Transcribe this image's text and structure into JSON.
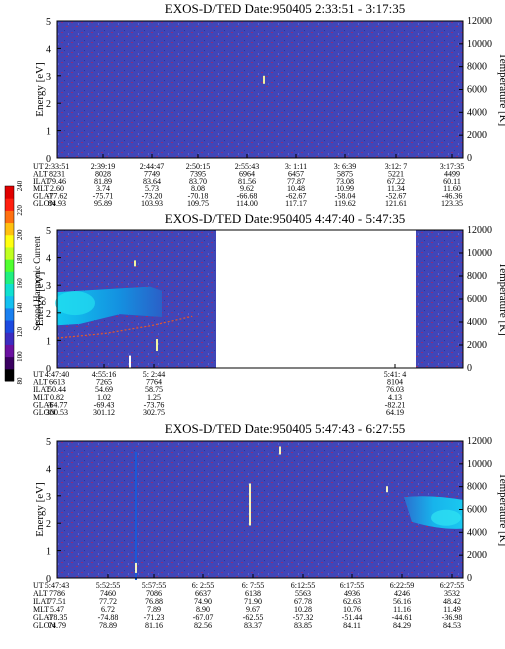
{
  "panels": [
    {
      "title": "EXOS-D/TED   Date:950405   2:33:51 - 3:17:35",
      "yticks": [
        "0",
        "1",
        "2",
        "3",
        "4",
        "5"
      ],
      "rticks": [
        "0",
        "2000",
        "4000",
        "6000",
        "8000",
        "10000",
        "12000"
      ],
      "ylabel": "Energy [eV]",
      "rlabel": "Temperature [K]",
      "row_labels": [
        "UT",
        "ALT",
        "ILAT",
        "MLT",
        "GLAT",
        "GLON"
      ],
      "columns": [
        [
          "2:33:51",
          "8231",
          "79.46",
          "2.60",
          "-77.62",
          "84.93"
        ],
        [
          "2:39:19",
          "8028",
          "81.89",
          "3.74",
          "-75.71",
          "95.89"
        ],
        [
          "2:44:47",
          "7749",
          "83.64",
          "5.73",
          "-73.20",
          "103.93"
        ],
        [
          "2:50:15",
          "7395",
          "83.70",
          "8.08",
          "-70.18",
          "109.75"
        ],
        [
          "2:55:43",
          "6964",
          "81.56",
          "9.62",
          "-66.68",
          "114.00"
        ],
        [
          "3: 1:11",
          "6457",
          "77.87",
          "10.48",
          "-62.67",
          "117.17"
        ],
        [
          "3: 6:39",
          "5875",
          "73.08",
          "10.99",
          "-58.04",
          "119.62"
        ],
        [
          "3:12: 7",
          "5221",
          "67.22",
          "11.34",
          "-52.67",
          "121.61"
        ],
        [
          "3:17:35",
          "4499",
          "60.11",
          "11.60",
          "-46.36",
          "123.35"
        ]
      ]
    },
    {
      "title": "EXOS-D/TED   Date:950405   4:47:40 - 5:47:35",
      "yticks": [
        "0",
        "1",
        "2",
        "3",
        "4",
        "5"
      ],
      "rticks": [
        "0",
        "2000",
        "4000",
        "6000",
        "8000",
        "10000",
        "12000"
      ],
      "ylabel": "Energy [eV]",
      "rlabel": "Temperature [K]",
      "row_labels": [
        "UT",
        "ALT",
        "ILAT",
        "MLT",
        "GLAT",
        "GLON"
      ],
      "columns": [
        [
          "4:47:40",
          "6613",
          "50.44",
          "0.82",
          "-64.77",
          "300.53"
        ],
        [
          "4:55:16",
          "7265",
          "54.69",
          "1.02",
          "-69.43",
          "301.12"
        ],
        [
          "5: 2:44",
          "7764",
          "58.75",
          "1.25",
          "-73.76",
          "302.75"
        ],
        [
          "5:41: 4",
          "8104",
          "76.03",
          "4.13",
          "-82.21",
          "64.19"
        ]
      ]
    },
    {
      "title": "EXOS-D/TED   Date:950405   5:47:43 - 6:27:55",
      "yticks": [
        "0",
        "1",
        "2",
        "3",
        "4",
        "5"
      ],
      "rticks": [
        "0",
        "2000",
        "4000",
        "6000",
        "8000",
        "10000",
        "12000"
      ],
      "ylabel": "Energy [eV]",
      "rlabel": "Temperature [K]",
      "row_labels": [
        "UT",
        "ALT",
        "ILAT",
        "MLT",
        "GLAT",
        "GLON"
      ],
      "columns": [
        [
          "5:47:43",
          "7786",
          "77.51",
          "5.47",
          "-78.35",
          "74.79"
        ],
        [
          "5:52:55",
          "7460",
          "77.72",
          "6.72",
          "-74.88",
          "78.89"
        ],
        [
          "5:57:55",
          "7086",
          "76.88",
          "7.89",
          "-71.23",
          "81.16"
        ],
        [
          "6: 2:55",
          "6637",
          "74.90",
          "8.90",
          "-67.07",
          "82.56"
        ],
        [
          "6: 7:55",
          "6138",
          "71.90",
          "9.67",
          "-62.55",
          "83.37"
        ],
        [
          "6:12:55",
          "5563",
          "67.78",
          "10.28",
          "-57.32",
          "83.85"
        ],
        [
          "6:17:55",
          "4936",
          "62.63",
          "10.76",
          "-51.44",
          "84.11"
        ],
        [
          "6:22:59",
          "4246",
          "56.16",
          "11.16",
          "-44.61",
          "84.29"
        ],
        [
          "6:27:55",
          "3532",
          "48.42",
          "11.49",
          "-36.98",
          "84.53"
        ]
      ]
    }
  ],
  "colorbar": {
    "label": "Second Harmonic Current",
    "ticks": [
      "80",
      "100",
      "120",
      "140",
      "160",
      "180",
      "200",
      "220",
      "240"
    ]
  },
  "chart_data": [
    {
      "type": "heatmap",
      "title": "EXOS-D/TED   Date:950405   2:33:51 - 3:17:35",
      "ylabel": "Energy [eV]",
      "ylim": [
        0,
        5
      ],
      "y2label": "Temperature [K]",
      "y2lim": [
        0,
        12000
      ],
      "x": [
        "2:33:51",
        "2:39:19",
        "2:44:47",
        "2:50:15",
        "2:55:43",
        "3: 1:11",
        "3: 6:39",
        "3:12: 7",
        "3:17:35"
      ],
      "background_level": 120
    },
    {
      "type": "heatmap",
      "title": "EXOS-D/TED   Date:950405   4:47:40 - 5:47:35",
      "ylabel": "Energy [eV]",
      "ylim": [
        0,
        5
      ],
      "y2label": "Temperature [K]",
      "y2lim": [
        0,
        12000
      ],
      "x": [
        "4:47:40",
        "4:55:16",
        "5: 2:44",
        "5:41: 4"
      ],
      "background_level": 120,
      "data_gap": [
        "5: 6",
        "5:41"
      ],
      "band_energy_eV": 2.3,
      "band_level": 160,
      "temperature_trace_K": [
        [
          0.0,
          2600
        ],
        [
          0.3,
          3000
        ],
        [
          0.6,
          3700
        ],
        [
          0.85,
          4500
        ]
      ]
    },
    {
      "type": "heatmap",
      "title": "EXOS-D/TED   Date:950405   5:47:43 - 6:27:55",
      "ylabel": "Energy [eV]",
      "ylim": [
        0,
        5
      ],
      "y2label": "Temperature [K]",
      "y2lim": [
        0,
        12000
      ],
      "x": [
        "5:47:43",
        "5:52:55",
        "5:57:55",
        "6: 2:55",
        "6: 7:55",
        "6:12:55",
        "6:17:55",
        "6:22:59",
        "6:27:55"
      ],
      "background_level": 120,
      "band_energy_eV": 2.2,
      "band_level": 150
    }
  ]
}
